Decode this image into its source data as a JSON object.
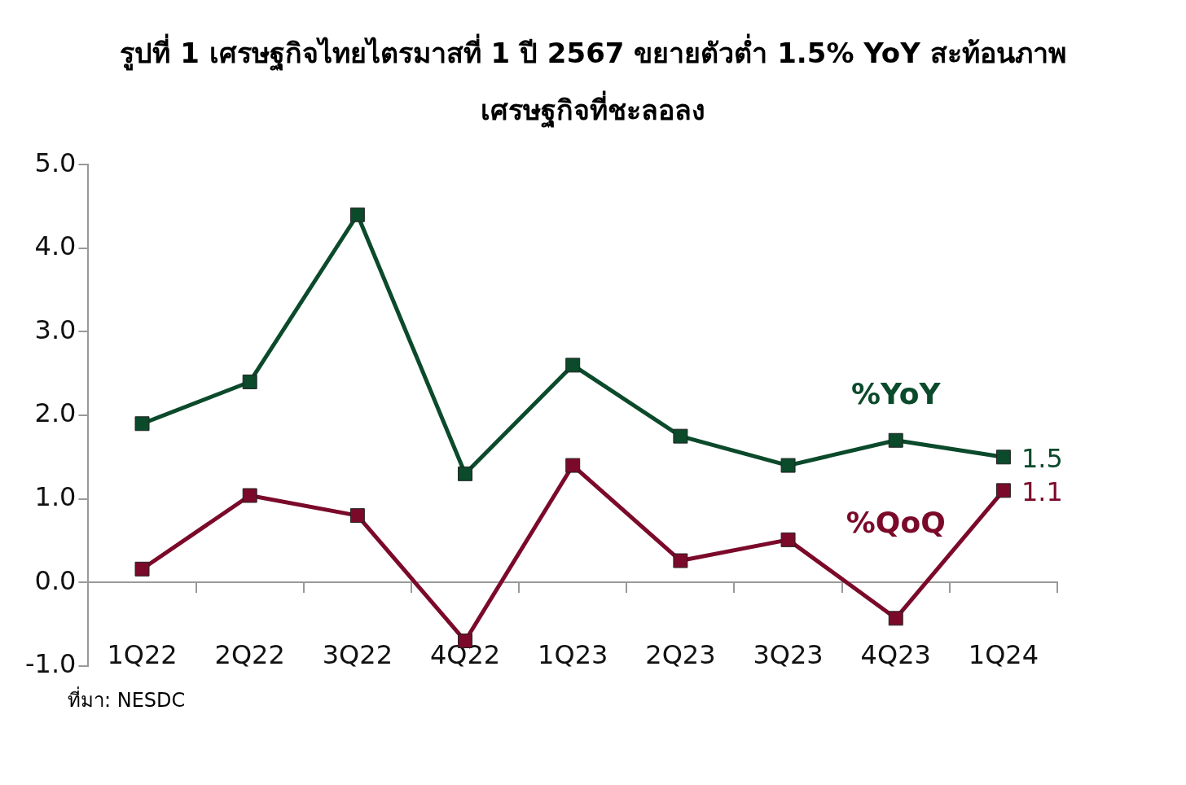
{
  "chart_data": {
    "type": "line",
    "title": "รูปที่ 1 เศรษฐกิจไทยไตรมาสที่ 1 ปี 2567 ขยายตัวต่ำ 1.5% YoY สะท้อนภาพเศรษฐกิจที่ชะลอลง",
    "categories": [
      "1Q22",
      "2Q22",
      "3Q22",
      "4Q22",
      "1Q23",
      "2Q23",
      "3Q23",
      "4Q23",
      "1Q24"
    ],
    "series": [
      {
        "name": "%YoY",
        "color": "#0b4a2b",
        "values": [
          1.9,
          2.4,
          4.4,
          1.3,
          2.6,
          1.75,
          1.4,
          1.7,
          1.5
        ],
        "value_labels": [
          null,
          null,
          null,
          null,
          null,
          null,
          null,
          null,
          "1.5"
        ]
      },
      {
        "name": "%QoQ",
        "color": "#7b0a2a",
        "values": [
          0.16,
          1.04,
          0.8,
          -0.7,
          1.4,
          0.26,
          0.51,
          -0.43,
          1.1
        ],
        "value_labels": [
          null,
          null,
          null,
          null,
          null,
          null,
          null,
          null,
          "1.1"
        ]
      }
    ],
    "ylim": [
      -1.0,
      5.0
    ],
    "yticks": [
      {
        "value": -1,
        "label": "-1.0"
      },
      {
        "value": 0,
        "label": "0.0"
      },
      {
        "value": 1,
        "label": "1.0"
      },
      {
        "value": 2,
        "label": "2.0"
      },
      {
        "value": 3,
        "label": "3.0"
      },
      {
        "value": 4,
        "label": "4.0"
      },
      {
        "value": 5,
        "label": "5.0"
      }
    ],
    "grid": false,
    "legend": false,
    "marker": "square",
    "line_style": "solid",
    "annotations": [
      "ที่มา: NESDC"
    ]
  }
}
